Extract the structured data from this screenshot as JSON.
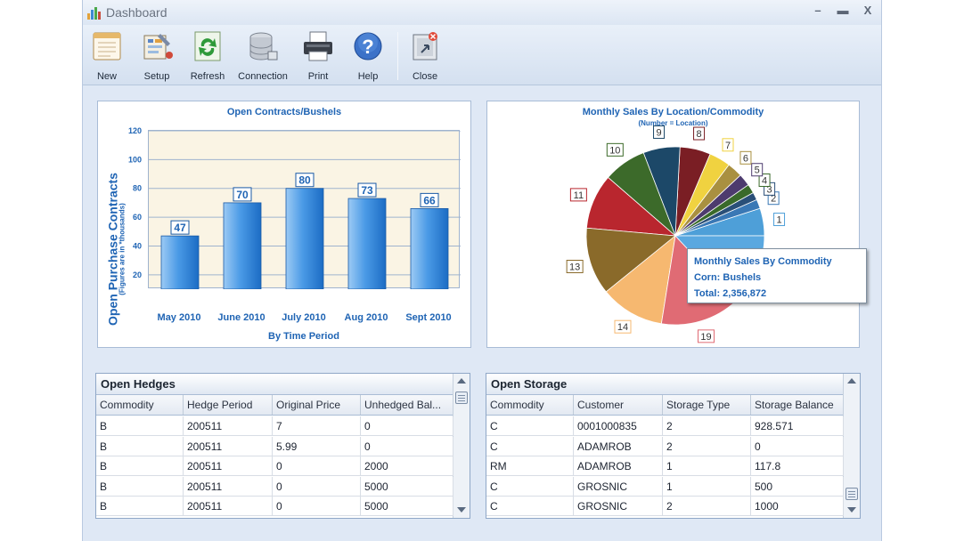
{
  "window": {
    "title": "Dashboard",
    "controls": [
      "–",
      "▬",
      "X"
    ]
  },
  "toolbar": {
    "buttons": [
      {
        "label": "New",
        "icon": "new-document-icon"
      },
      {
        "label": "Setup",
        "icon": "setup-icon"
      },
      {
        "label": "Refresh",
        "icon": "refresh-icon"
      },
      {
        "label": "Connection",
        "icon": "database-icon"
      },
      {
        "label": "Print",
        "icon": "printer-icon"
      },
      {
        "label": "Help",
        "icon": "help-icon"
      },
      {
        "label": "Close",
        "icon": "close-icon"
      }
    ]
  },
  "bar_chart": {
    "title": "Open Contracts/Bushels",
    "ylabel": "Open Purchase Contracts",
    "ylabel_sub": "(Figures are in *thousands)",
    "xlabel": "By Time Period"
  },
  "pie_chart": {
    "title": "Monthly Sales By Location/Commodity",
    "subtitle": "(Number = Location)",
    "tooltip": {
      "line1": "Monthly Sales By Commodity",
      "line2": "Corn: Bushels",
      "line3": "Total: 2,356,872"
    }
  },
  "chart_data": [
    {
      "type": "bar",
      "title": "Open Contracts/Bushels",
      "categories": [
        "May 2010",
        "June 2010",
        "July 2010",
        "Aug 2010",
        "Sept 2010"
      ],
      "values": [
        47,
        70,
        80,
        73,
        66
      ],
      "ylabel": "Open Purchase Contracts",
      "xlabel": "By Time Period",
      "yticks": [
        20,
        40,
        60,
        80,
        100,
        120
      ],
      "ylim": [
        10,
        120
      ],
      "grid": true
    },
    {
      "type": "pie",
      "title": "Monthly Sales By Location/Commodity",
      "slices": [
        {
          "label": "1",
          "value": 18,
          "color": "#4e9fd8"
        },
        {
          "label": "2",
          "value": 6,
          "color": "#3a78b5"
        },
        {
          "label": "3",
          "value": 5,
          "color": "#2a4f78"
        },
        {
          "label": "4",
          "value": 6,
          "color": "#3a6a2a"
        },
        {
          "label": "5",
          "value": 8,
          "color": "#4d3b6e"
        },
        {
          "label": "6",
          "value": 10,
          "color": "#a99040"
        },
        {
          "label": "7",
          "value": 14,
          "color": "#f0d240"
        },
        {
          "label": "8",
          "value": 20,
          "color": "#7a1e24"
        },
        {
          "label": "9",
          "value": 24,
          "color": "#1c4868"
        },
        {
          "label": "10",
          "value": 28,
          "color": "#3c6a2a"
        },
        {
          "label": "11",
          "value": 36,
          "color": "#b9262e"
        },
        {
          "label": "13",
          "value": 44,
          "color": "#8a6a2a"
        },
        {
          "label": "14",
          "value": 42,
          "color": "#f6b870"
        },
        {
          "label": "19",
          "value": 52,
          "color": "#e06b74"
        },
        {
          "label": "",
          "value": 47,
          "color": "#5aa8e0"
        }
      ]
    }
  ],
  "open_hedges": {
    "title": "Open Hedges",
    "columns": [
      "Commodity",
      "Hedge Period",
      "Original Price",
      "Unhedged Bal..."
    ],
    "rows": [
      [
        "B",
        "200511",
        "7",
        "0"
      ],
      [
        "B",
        "200511",
        "5.99",
        "0"
      ],
      [
        "B",
        "200511",
        "0",
        "2000"
      ],
      [
        "B",
        "200511",
        "0",
        "5000"
      ],
      [
        "B",
        "200511",
        "0",
        "5000"
      ]
    ]
  },
  "open_storage": {
    "title": "Open Storage",
    "columns": [
      "Commodity",
      "Customer",
      "Storage Type",
      "Storage Balance"
    ],
    "rows": [
      [
        "C",
        "0001000835",
        "2",
        "928.571"
      ],
      [
        "C",
        "ADAMROB",
        "2",
        "0"
      ],
      [
        "RM",
        "ADAMROB",
        "1",
        "117.8"
      ],
      [
        "C",
        "GROSNIC",
        "1",
        "500"
      ],
      [
        "C",
        "GROSNIC",
        "2",
        "1000"
      ]
    ]
  }
}
